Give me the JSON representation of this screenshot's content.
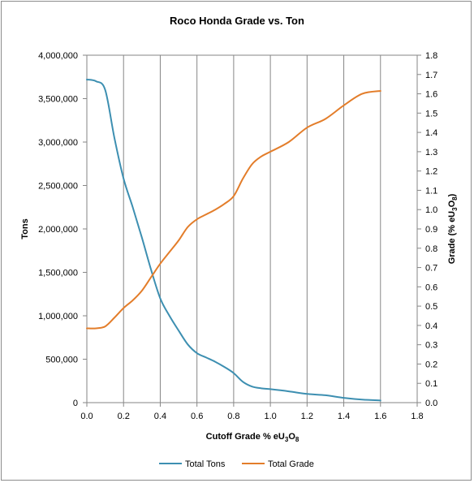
{
  "chart_data": {
    "type": "line",
    "title": "Roco Honda  Grade vs. Ton",
    "xlabel_parts": [
      "Cutoff Grade % eU",
      "3",
      "O",
      "8"
    ],
    "ylabel_left": "Tons",
    "ylabel_right_parts": [
      "Grade (% eU",
      "3",
      "O",
      "8",
      ")"
    ],
    "xlim": [
      0,
      1.8
    ],
    "ylim_left": [
      0,
      4000000
    ],
    "ylim_right": [
      0,
      1.8
    ],
    "x_ticks": [
      "0.0",
      "0.2",
      "0.4",
      "0.6",
      "0.8",
      "1.0",
      "1.2",
      "1.4",
      "1.6",
      "1.8"
    ],
    "y_left_ticks": [
      "0",
      "500,000",
      "1,000,000",
      "1,500,000",
      "2,000,000",
      "2,500,000",
      "3,000,000",
      "3,500,000",
      "4,000,000"
    ],
    "y_right_ticks": [
      "0.0",
      "0.1",
      "0.2",
      "0.3",
      "0.4",
      "0.5",
      "0.6",
      "0.7",
      "0.8",
      "0.9",
      "1.0",
      "1.1",
      "1.2",
      "1.3",
      "1.4",
      "1.5",
      "1.6",
      "1.7",
      "1.8"
    ],
    "grid": "vertical",
    "legend_position": "bottom",
    "series": [
      {
        "name": "Total Tons",
        "axis": "left",
        "color": "#3d8fb1",
        "x": [
          0,
          0.05,
          0.1,
          0.15,
          0.2,
          0.25,
          0.3,
          0.35,
          0.4,
          0.45,
          0.5,
          0.55,
          0.6,
          0.65,
          0.7,
          0.75,
          0.8,
          0.85,
          0.9,
          0.95,
          1.0,
          1.1,
          1.2,
          1.3,
          1.4,
          1.5,
          1.6
        ],
        "values": [
          3720000,
          3700000,
          3600000,
          3050000,
          2580000,
          2250000,
          1900000,
          1530000,
          1200000,
          1000000,
          830000,
          670000,
          570000,
          520000,
          470000,
          410000,
          340000,
          240000,
          185000,
          165000,
          155000,
          130000,
          100000,
          85000,
          55000,
          35000,
          25000
        ]
      },
      {
        "name": "Total Grade",
        "axis": "right",
        "color": "#e37d2a",
        "x": [
          0,
          0.05,
          0.1,
          0.15,
          0.2,
          0.25,
          0.3,
          0.35,
          0.4,
          0.45,
          0.5,
          0.55,
          0.6,
          0.65,
          0.7,
          0.75,
          0.8,
          0.85,
          0.9,
          0.95,
          1.0,
          1.1,
          1.2,
          1.3,
          1.4,
          1.5,
          1.6
        ],
        "values": [
          0.385,
          0.385,
          0.395,
          0.44,
          0.49,
          0.53,
          0.58,
          0.65,
          0.72,
          0.78,
          0.84,
          0.91,
          0.95,
          0.975,
          1.0,
          1.03,
          1.07,
          1.16,
          1.235,
          1.275,
          1.3,
          1.35,
          1.425,
          1.47,
          1.54,
          1.6,
          1.615
        ]
      }
    ]
  }
}
